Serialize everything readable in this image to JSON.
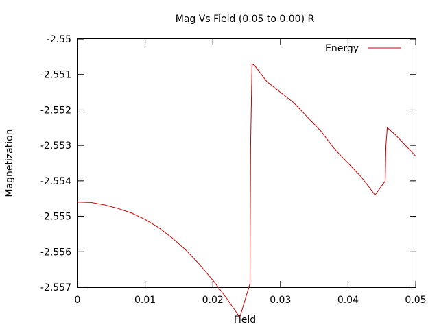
{
  "chart_data": {
    "type": "line",
    "title": "Mag Vs Field (0.05 to 0.00) R",
    "xlabel": "Field",
    "ylabel": "Magnetization",
    "xlim": [
      0,
      0.05
    ],
    "ylim": [
      -2.557,
      -2.55
    ],
    "xticks": [
      "0",
      "0.01",
      "0.02",
      "0.03",
      "0.04",
      "0.05"
    ],
    "yticks": [
      "-2.55",
      "-2.551",
      "-2.552",
      "-2.553",
      "-2.554",
      "-2.555",
      "-2.556",
      "-2.557"
    ],
    "grid": false,
    "legend_position": "top-right",
    "series": [
      {
        "name": "Energy",
        "color": "#cc0000",
        "x": [
          0,
          0.002,
          0.004,
          0.006,
          0.008,
          0.01,
          0.012,
          0.014,
          0.016,
          0.018,
          0.02,
          0.022,
          0.024,
          0.0255,
          0.0256,
          0.0258,
          0.0262,
          0.028,
          0.03,
          0.032,
          0.034,
          0.036,
          0.038,
          0.04,
          0.042,
          0.044,
          0.0455,
          0.0456,
          0.0458,
          0.047,
          0.049,
          0.05
        ],
        "y": [
          -2.5546,
          -2.55461,
          -2.55468,
          -2.55478,
          -2.55491,
          -2.55509,
          -2.55532,
          -2.55561,
          -2.55595,
          -2.55635,
          -2.5568,
          -2.5573,
          -2.55785,
          -2.5569,
          -2.553,
          -2.5507,
          -2.55075,
          -2.5512,
          -2.5515,
          -2.5518,
          -2.5522,
          -2.5526,
          -2.5531,
          -2.5535,
          -2.5539,
          -2.5544,
          -2.554,
          -2.553,
          -2.5525,
          -2.5527,
          -2.5531,
          -2.5533
        ]
      }
    ]
  }
}
